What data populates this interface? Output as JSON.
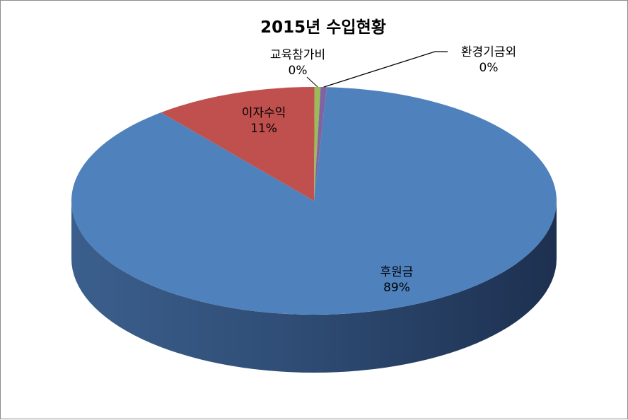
{
  "chart_data": {
    "type": "pie",
    "style": "3d",
    "title": "2015년 수입현황",
    "categories": [
      "후원금",
      "이자수익",
      "교육참가비",
      "환경기금외"
    ],
    "values": [
      89,
      11,
      0.4,
      0.4
    ],
    "labels": [
      {
        "name": "후원금",
        "percent": "89%"
      },
      {
        "name": "이자수익",
        "percent": "11%"
      },
      {
        "name": "교육참가비",
        "percent": "0%"
      },
      {
        "name": "환경기금외",
        "percent": "0%"
      }
    ],
    "colors": [
      "#4f81bd",
      "#c0504d",
      "#9bbb59",
      "#8064a2"
    ],
    "legend": "none"
  }
}
